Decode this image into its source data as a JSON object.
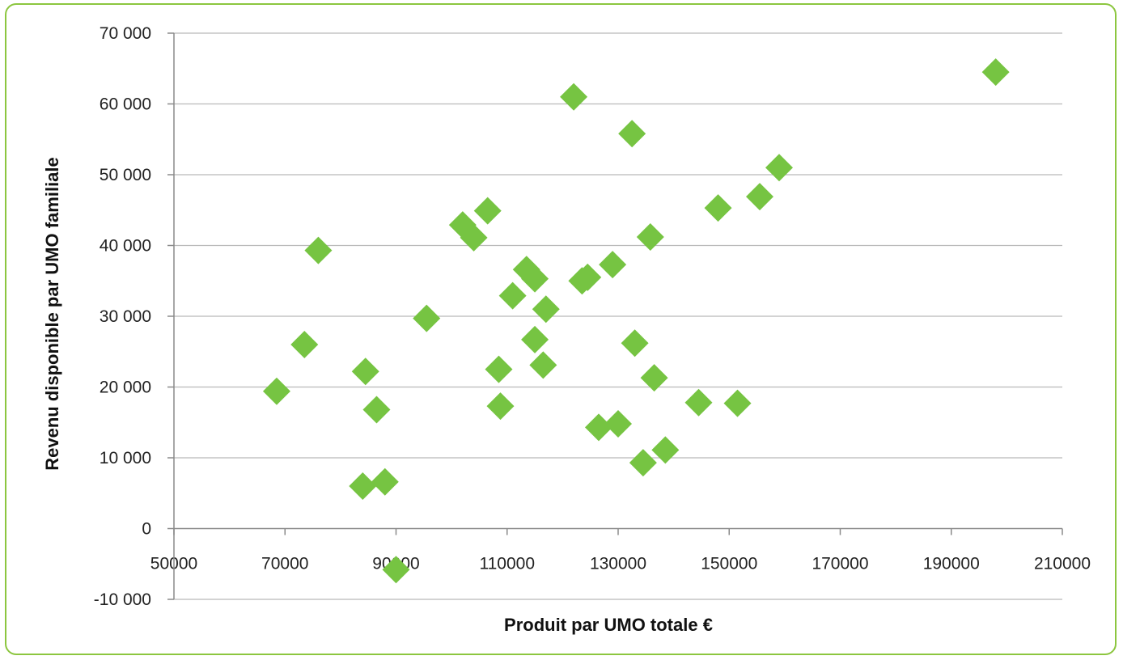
{
  "chart_data": {
    "type": "scatter",
    "title": "",
    "xlabel": "Produit par UMO totale €",
    "ylabel": "Revenu disponible  par UMO familiale",
    "xlim": [
      50000,
      210000
    ],
    "ylim": [
      -10000,
      70000
    ],
    "x_ticks": [
      50000,
      70000,
      90000,
      110000,
      130000,
      150000,
      170000,
      190000,
      210000
    ],
    "x_tick_labels": [
      "50000",
      "70000",
      "90000",
      "110000",
      "130000",
      "150000",
      "170000",
      "190000",
      "210000"
    ],
    "y_ticks": [
      -10000,
      0,
      10000,
      20000,
      30000,
      40000,
      50000,
      60000,
      70000
    ],
    "y_tick_labels": [
      "-10 000",
      "0",
      "10 000",
      "20 000",
      "30 000",
      "40 000",
      "50 000",
      "60 000",
      "70 000"
    ],
    "grid": true,
    "marker_color": "#76c442",
    "points": [
      {
        "x": 198000,
        "y": 64500
      },
      {
        "x": 122000,
        "y": 61000
      },
      {
        "x": 132500,
        "y": 55800
      },
      {
        "x": 159000,
        "y": 51000
      },
      {
        "x": 155500,
        "y": 46900
      },
      {
        "x": 148000,
        "y": 45300
      },
      {
        "x": 106500,
        "y": 44900
      },
      {
        "x": 102000,
        "y": 42900
      },
      {
        "x": 104000,
        "y": 41100
      },
      {
        "x": 135800,
        "y": 41200
      },
      {
        "x": 76000,
        "y": 39300
      },
      {
        "x": 129000,
        "y": 37300
      },
      {
        "x": 113500,
        "y": 36600
      },
      {
        "x": 115000,
        "y": 35300
      },
      {
        "x": 124500,
        "y": 35500
      },
      {
        "x": 123500,
        "y": 35000
      },
      {
        "x": 111000,
        "y": 32900
      },
      {
        "x": 117000,
        "y": 31000
      },
      {
        "x": 95500,
        "y": 29700
      },
      {
        "x": 115000,
        "y": 26700
      },
      {
        "x": 133000,
        "y": 26200
      },
      {
        "x": 73500,
        "y": 26000
      },
      {
        "x": 116500,
        "y": 23100
      },
      {
        "x": 108500,
        "y": 22500
      },
      {
        "x": 84500,
        "y": 22200
      },
      {
        "x": 136500,
        "y": 21300
      },
      {
        "x": 68500,
        "y": 19400
      },
      {
        "x": 144500,
        "y": 17800
      },
      {
        "x": 151500,
        "y": 17700
      },
      {
        "x": 108800,
        "y": 17300
      },
      {
        "x": 86500,
        "y": 16800
      },
      {
        "x": 130000,
        "y": 14800
      },
      {
        "x": 126500,
        "y": 14300
      },
      {
        "x": 138500,
        "y": 11100
      },
      {
        "x": 134500,
        "y": 9300
      },
      {
        "x": 88000,
        "y": 6600
      },
      {
        "x": 84000,
        "y": 6000
      },
      {
        "x": 90000,
        "y": -5800
      }
    ]
  }
}
